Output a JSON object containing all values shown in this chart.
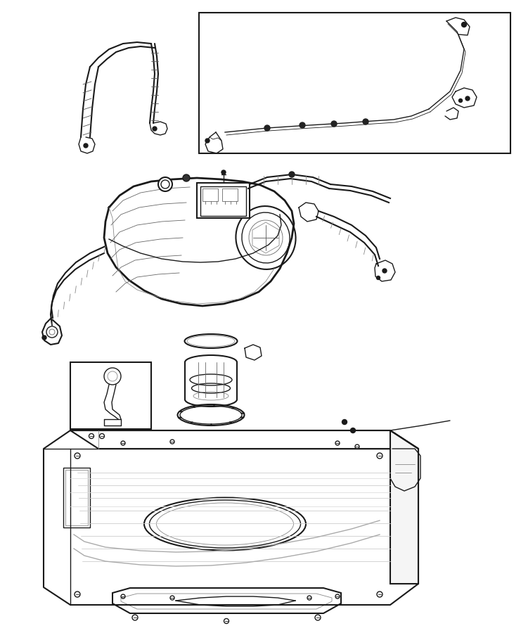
{
  "background_color": "#ffffff",
  "line_color": "#333333",
  "dark_line_color": "#1a1a1a",
  "fig_width": 7.41,
  "fig_height": 9.0,
  "dpi": 100,
  "lw_thin": 0.6,
  "lw_med": 1.0,
  "lw_thick": 1.5,
  "lw_xthick": 2.0
}
